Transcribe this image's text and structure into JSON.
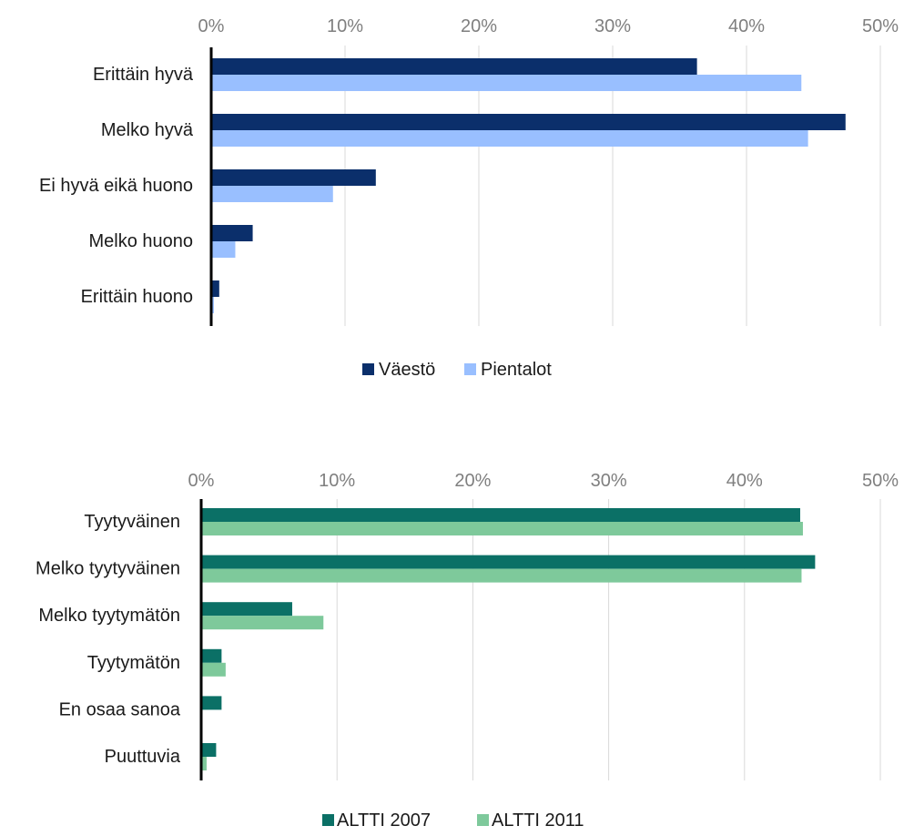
{
  "colors": {
    "vaesto": "#0b2f6b",
    "pientalot": "#99bfff",
    "altti2007": "#0b7066",
    "altti2011": "#7ec99b",
    "grid": "#d9d9d9",
    "axis": "#000000"
  },
  "chart_data": [
    {
      "type": "bar",
      "orientation": "horizontal",
      "title": "",
      "xlabel": "",
      "ylabel": "",
      "xlim": [
        0,
        50
      ],
      "ticks": [
        "0%",
        "10%",
        "20%",
        "30%",
        "40%",
        "50%"
      ],
      "grid": true,
      "legend_position": "bottom",
      "categories": [
        "Erittäin hyvä",
        "Melko hyvä",
        "Ei hyvä eikä huono",
        "Melko huono",
        "Erittäin huono"
      ],
      "series": [
        {
          "name": "Väestö",
          "color_key": "vaesto",
          "values": [
            36.3,
            47.4,
            12.3,
            3.1,
            0.6
          ]
        },
        {
          "name": "Pientalot",
          "color_key": "pientalot",
          "values": [
            44.1,
            44.6,
            9.1,
            1.8,
            0.2
          ]
        }
      ]
    },
    {
      "type": "bar",
      "orientation": "horizontal",
      "title": "",
      "xlabel": "",
      "ylabel": "",
      "xlim": [
        0,
        50
      ],
      "ticks": [
        "0%",
        "10%",
        "20%",
        "30%",
        "40%",
        "50%"
      ],
      "grid": true,
      "legend_position": "bottom",
      "categories": [
        "Tyytyväinen",
        "Melko tyytyväinen",
        "Melko tyytymätön",
        "Tyytymätön",
        "En osaa sanoa",
        "Puuttuvia"
      ],
      "series": [
        {
          "name": "ALTTI 2007",
          "color_key": "altti2007",
          "values": [
            44.1,
            45.2,
            6.7,
            1.5,
            1.5,
            1.1
          ]
        },
        {
          "name": "ALTTI 2011",
          "color_key": "altti2011",
          "values": [
            44.3,
            44.2,
            9.0,
            1.8,
            0.0,
            0.4
          ]
        }
      ]
    }
  ]
}
